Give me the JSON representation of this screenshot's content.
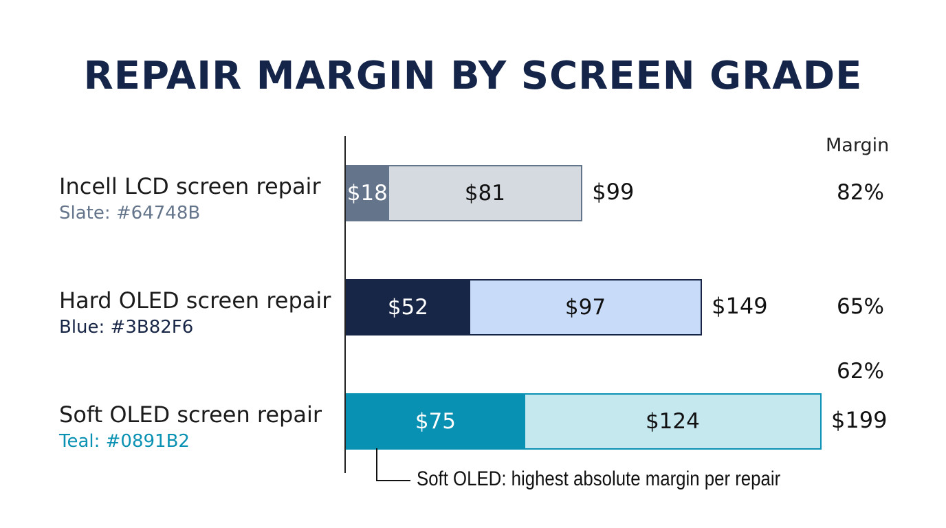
{
  "chart_data": {
    "type": "bar",
    "orientation": "horizontal",
    "stacked": true,
    "title": "REPAIR MARGIN BY SCREEN GRADE",
    "margin_header": "Margin",
    "categories": [
      {
        "name": "Incell LCD screen repair",
        "subtitle": "Slate: #64748B",
        "cost": 18,
        "cost_label": "$18",
        "margin": 81,
        "margin_label": "$81",
        "total": 99,
        "total_label": "$99",
        "margin_pct": "82%",
        "dark_color": "#64748B",
        "light_color": "#d5d9e0",
        "sub_color": "#64748B"
      },
      {
        "name": "Hard OLED screen repair",
        "subtitle": "Blue: #3B82F6",
        "cost": 52,
        "cost_label": "$52",
        "margin": 97,
        "margin_label": "$97",
        "total": 149,
        "total_label": "$149",
        "margin_pct": "65%",
        "dark_color": "#172546",
        "light_color": "#c8dcfa",
        "sub_color": "#172546"
      },
      {
        "name": "Soft OLED screen repair",
        "subtitle": "Teal: #0891B2",
        "cost": 75,
        "cost_label": "$75",
        "margin": 124,
        "margin_label": "$124",
        "total": 199,
        "total_label": "$199",
        "margin_pct": "62%",
        "dark_color": "#0891B2",
        "light_color": "#c5e7ee",
        "sub_color": "#0891B2"
      }
    ],
    "annotation": "Soft OLED: highest absolute margin per repair",
    "xlim": [
      0,
      199
    ]
  }
}
